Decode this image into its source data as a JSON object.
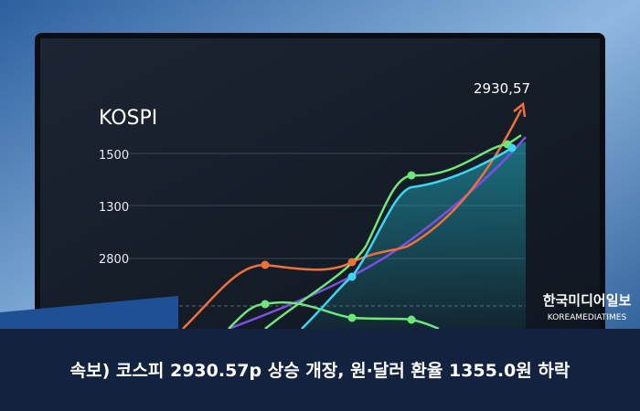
{
  "screen": {
    "title": "KOSPI",
    "annotation": "2930,57",
    "axis_labels": [
      "1500",
      "1300",
      "2800"
    ]
  },
  "watermark": {
    "korean": "한국미디어일보",
    "english": "KOREAMEDIATIMES"
  },
  "headline": "속보) 코스피 2930.57p 상승 개장, 원·달러 환율 1355.0원 하락"
}
